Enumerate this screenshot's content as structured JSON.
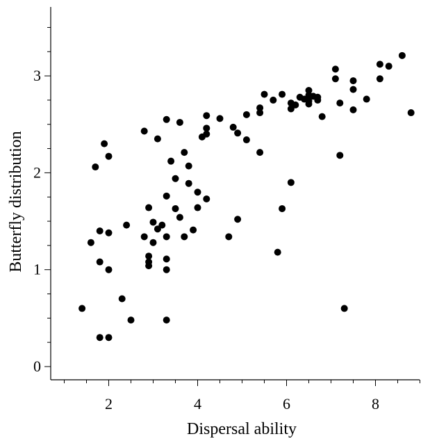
{
  "chart_data": {
    "type": "scatter",
    "title": "",
    "xlabel": "Dispersal ability",
    "ylabel": "Butterfly distribution",
    "xlim": [
      0.6,
      9.4
    ],
    "ylim": [
      -0.15,
      3.7
    ],
    "x_ticks": [
      2,
      4,
      6,
      8
    ],
    "x_tick_labels": [
      "2",
      "4",
      "6",
      "8"
    ],
    "x_minor_ticks": [
      1,
      1.5,
      2.5,
      3,
      3.5,
      4.5,
      5,
      5.5,
      6.5,
      7,
      7.5,
      8.5,
      9
    ],
    "y_ticks": [
      0,
      1,
      2,
      3
    ],
    "y_tick_labels": [
      "0",
      "1",
      "2",
      "3"
    ],
    "y_minor_ticks": [
      0.25,
      0.5,
      0.75,
      1.25,
      1.5,
      1.75,
      2.25,
      2.5,
      2.75,
      3.25,
      3.5
    ],
    "grid": false,
    "legend": "none",
    "marker_color": "#000000",
    "series": [
      {
        "points": [
          [
            1.4,
            0.6
          ],
          [
            1.6,
            1.28
          ],
          [
            1.7,
            2.06
          ],
          [
            1.8,
            1.4
          ],
          [
            1.8,
            1.08
          ],
          [
            1.8,
            0.3
          ],
          [
            1.9,
            2.3
          ],
          [
            2.0,
            2.17
          ],
          [
            2.0,
            1.38
          ],
          [
            2.0,
            1.0
          ],
          [
            2.0,
            0.3
          ],
          [
            2.3,
            0.7
          ],
          [
            2.4,
            1.46
          ],
          [
            2.5,
            0.48
          ],
          [
            2.8,
            2.43
          ],
          [
            2.8,
            1.34
          ],
          [
            2.9,
            1.64
          ],
          [
            2.9,
            1.14
          ],
          [
            2.9,
            1.08
          ],
          [
            2.9,
            1.04
          ],
          [
            3.0,
            1.49
          ],
          [
            3.0,
            1.28
          ],
          [
            3.1,
            2.35
          ],
          [
            3.1,
            1.42
          ],
          [
            3.2,
            1.46
          ],
          [
            3.3,
            2.55
          ],
          [
            3.3,
            1.76
          ],
          [
            3.3,
            1.34
          ],
          [
            3.3,
            1.11
          ],
          [
            3.3,
            1.0
          ],
          [
            3.3,
            0.48
          ],
          [
            3.4,
            2.12
          ],
          [
            3.5,
            1.94
          ],
          [
            3.5,
            1.63
          ],
          [
            3.6,
            2.52
          ],
          [
            3.6,
            1.54
          ],
          [
            3.7,
            2.21
          ],
          [
            3.7,
            1.34
          ],
          [
            3.8,
            2.07
          ],
          [
            3.8,
            1.89
          ],
          [
            3.9,
            1.41
          ],
          [
            4.0,
            1.8
          ],
          [
            4.0,
            1.64
          ],
          [
            4.1,
            2.37
          ],
          [
            4.2,
            2.59
          ],
          [
            4.2,
            2.46
          ],
          [
            4.2,
            2.4
          ],
          [
            4.2,
            1.73
          ],
          [
            4.5,
            2.56
          ],
          [
            4.7,
            1.34
          ],
          [
            4.8,
            2.47
          ],
          [
            4.9,
            2.41
          ],
          [
            4.9,
            1.52
          ],
          [
            5.1,
            2.6
          ],
          [
            5.1,
            2.34
          ],
          [
            5.4,
            2.67
          ],
          [
            5.4,
            2.62
          ],
          [
            5.4,
            2.21
          ],
          [
            5.5,
            2.81
          ],
          [
            5.7,
            2.75
          ],
          [
            5.8,
            1.18
          ],
          [
            5.9,
            2.81
          ],
          [
            5.9,
            1.63
          ],
          [
            6.1,
            2.72
          ],
          [
            6.1,
            2.66
          ],
          [
            6.1,
            1.9
          ],
          [
            6.2,
            2.7
          ],
          [
            6.3,
            2.78
          ],
          [
            6.4,
            2.76
          ],
          [
            6.5,
            2.85
          ],
          [
            6.5,
            2.8
          ],
          [
            6.5,
            2.74
          ],
          [
            6.5,
            2.71
          ],
          [
            6.6,
            2.79
          ],
          [
            6.7,
            2.78
          ],
          [
            6.7,
            2.75
          ],
          [
            6.8,
            2.58
          ],
          [
            7.1,
            3.07
          ],
          [
            7.1,
            2.97
          ],
          [
            7.2,
            2.72
          ],
          [
            7.2,
            2.18
          ],
          [
            7.3,
            0.6
          ],
          [
            7.5,
            2.95
          ],
          [
            7.5,
            2.86
          ],
          [
            7.5,
            2.65
          ],
          [
            7.8,
            2.76
          ],
          [
            8.1,
            3.12
          ],
          [
            8.1,
            2.97
          ],
          [
            8.3,
            3.1
          ],
          [
            8.6,
            3.21
          ],
          [
            8.8,
            2.62
          ]
        ]
      }
    ]
  }
}
